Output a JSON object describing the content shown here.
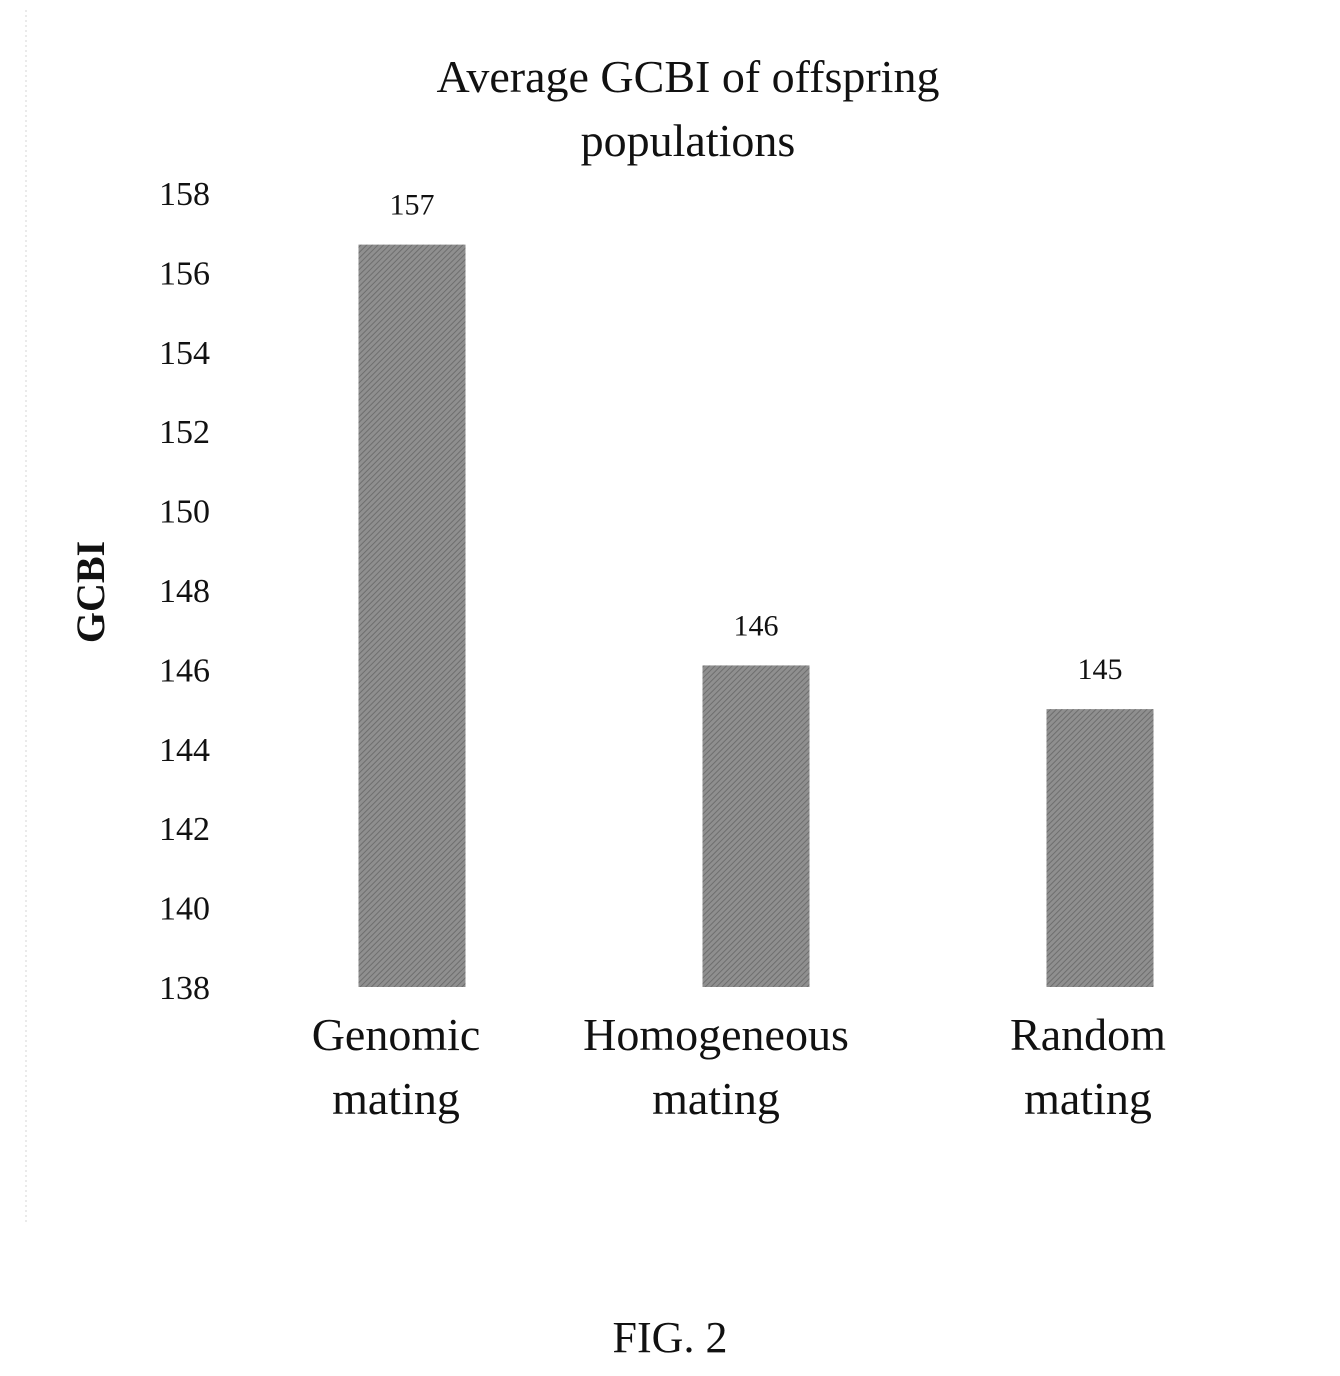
{
  "caption": "FIG. 2",
  "colors": {
    "bar_fill": "#8f8f8f",
    "bar_stripe": "#6e6e6e",
    "text": "#111111",
    "frame_line": "#d6d6d6"
  },
  "chart_data": {
    "type": "bar",
    "title": [
      "Average GCBI of offspring",
      "populations"
    ],
    "ylabel": "GCBI",
    "xlabel": "",
    "ylim": [
      138,
      158
    ],
    "yticks": [
      138,
      140,
      142,
      144,
      146,
      148,
      150,
      152,
      154,
      156,
      158
    ],
    "categories": [
      [
        "Genomic",
        "mating"
      ],
      [
        "Homogeneous",
        "mating"
      ],
      [
        "Random",
        "mating"
      ]
    ],
    "values": [
      156.7,
      146.1,
      145.0
    ],
    "data_labels": [
      "157",
      "146",
      "145"
    ],
    "grid": false,
    "legend": "none"
  }
}
